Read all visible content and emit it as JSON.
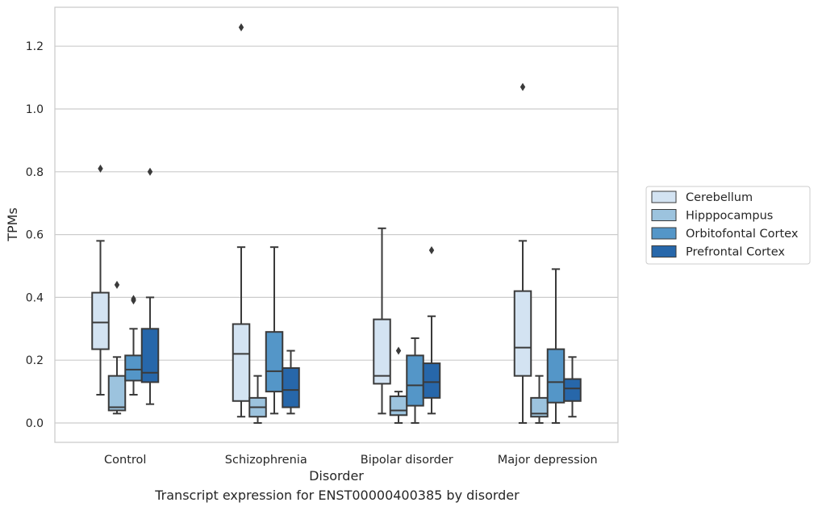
{
  "chart_data": {
    "type": "box",
    "xlabel": "Disorder",
    "ylabel": "TPMs",
    "ylim": [
      -0.06,
      1.32
    ],
    "yticks": [
      0.0,
      0.2,
      0.4,
      0.6,
      0.8,
      1.0,
      1.2
    ],
    "categories": [
      "Control",
      "Schizophrenia",
      "Bipolar disorder",
      "Major depression"
    ],
    "grid": "horizontal",
    "legend_position": "right",
    "series": [
      {
        "name": "Cerebellum",
        "color": "#d3e3f2",
        "boxes": [
          {
            "whislo": 0.09,
            "q1": 0.235,
            "med": 0.32,
            "q3": 0.415,
            "whishi": 0.58,
            "fliers": [
              0.81
            ]
          },
          {
            "whislo": 0.02,
            "q1": 0.07,
            "med": 0.22,
            "q3": 0.315,
            "whishi": 0.56,
            "fliers": [
              1.26
            ]
          },
          {
            "whislo": 0.03,
            "q1": 0.125,
            "med": 0.15,
            "q3": 0.33,
            "whishi": 0.62,
            "fliers": []
          },
          {
            "whislo": 0.0,
            "q1": 0.15,
            "med": 0.24,
            "q3": 0.42,
            "whishi": 0.58,
            "fliers": [
              1.07
            ]
          }
        ]
      },
      {
        "name": "Hipppocampus",
        "color": "#9cc3de",
        "boxes": [
          {
            "whislo": 0.03,
            "q1": 0.04,
            "med": 0.05,
            "q3": 0.15,
            "whishi": 0.21,
            "fliers": [
              0.44
            ]
          },
          {
            "whislo": 0.0,
            "q1": 0.02,
            "med": 0.05,
            "q3": 0.08,
            "whishi": 0.15,
            "fliers": []
          },
          {
            "whislo": 0.0,
            "q1": 0.025,
            "med": 0.04,
            "q3": 0.085,
            "whishi": 0.1,
            "fliers": [
              0.23
            ]
          },
          {
            "whislo": 0.0,
            "q1": 0.02,
            "med": 0.03,
            "q3": 0.08,
            "whishi": 0.15,
            "fliers": []
          }
        ]
      },
      {
        "name": "Orbitofontal Cortex",
        "color": "#5496c8",
        "boxes": [
          {
            "whislo": 0.09,
            "q1": 0.135,
            "med": 0.17,
            "q3": 0.215,
            "whishi": 0.3,
            "fliers": [
              0.39,
              0.395
            ]
          },
          {
            "whislo": 0.03,
            "q1": 0.1,
            "med": 0.165,
            "q3": 0.29,
            "whishi": 0.56,
            "fliers": []
          },
          {
            "whislo": 0.0,
            "q1": 0.055,
            "med": 0.12,
            "q3": 0.215,
            "whishi": 0.27,
            "fliers": []
          },
          {
            "whislo": 0.0,
            "q1": 0.065,
            "med": 0.13,
            "q3": 0.235,
            "whishi": 0.49,
            "fliers": []
          }
        ]
      },
      {
        "name": "Prefrontal Cortex",
        "color": "#2767aa",
        "boxes": [
          {
            "whislo": 0.06,
            "q1": 0.13,
            "med": 0.16,
            "q3": 0.3,
            "whishi": 0.4,
            "fliers": [
              0.8
            ]
          },
          {
            "whislo": 0.03,
            "q1": 0.05,
            "med": 0.105,
            "q3": 0.175,
            "whishi": 0.23,
            "fliers": []
          },
          {
            "whislo": 0.03,
            "q1": 0.08,
            "med": 0.13,
            "q3": 0.19,
            "whishi": 0.34,
            "fliers": [
              0.55
            ]
          },
          {
            "whislo": 0.02,
            "q1": 0.07,
            "med": 0.11,
            "q3": 0.14,
            "whishi": 0.21,
            "fliers": []
          }
        ]
      }
    ],
    "caption": "Transcript expression for ENST00000400385 by disorder"
  }
}
